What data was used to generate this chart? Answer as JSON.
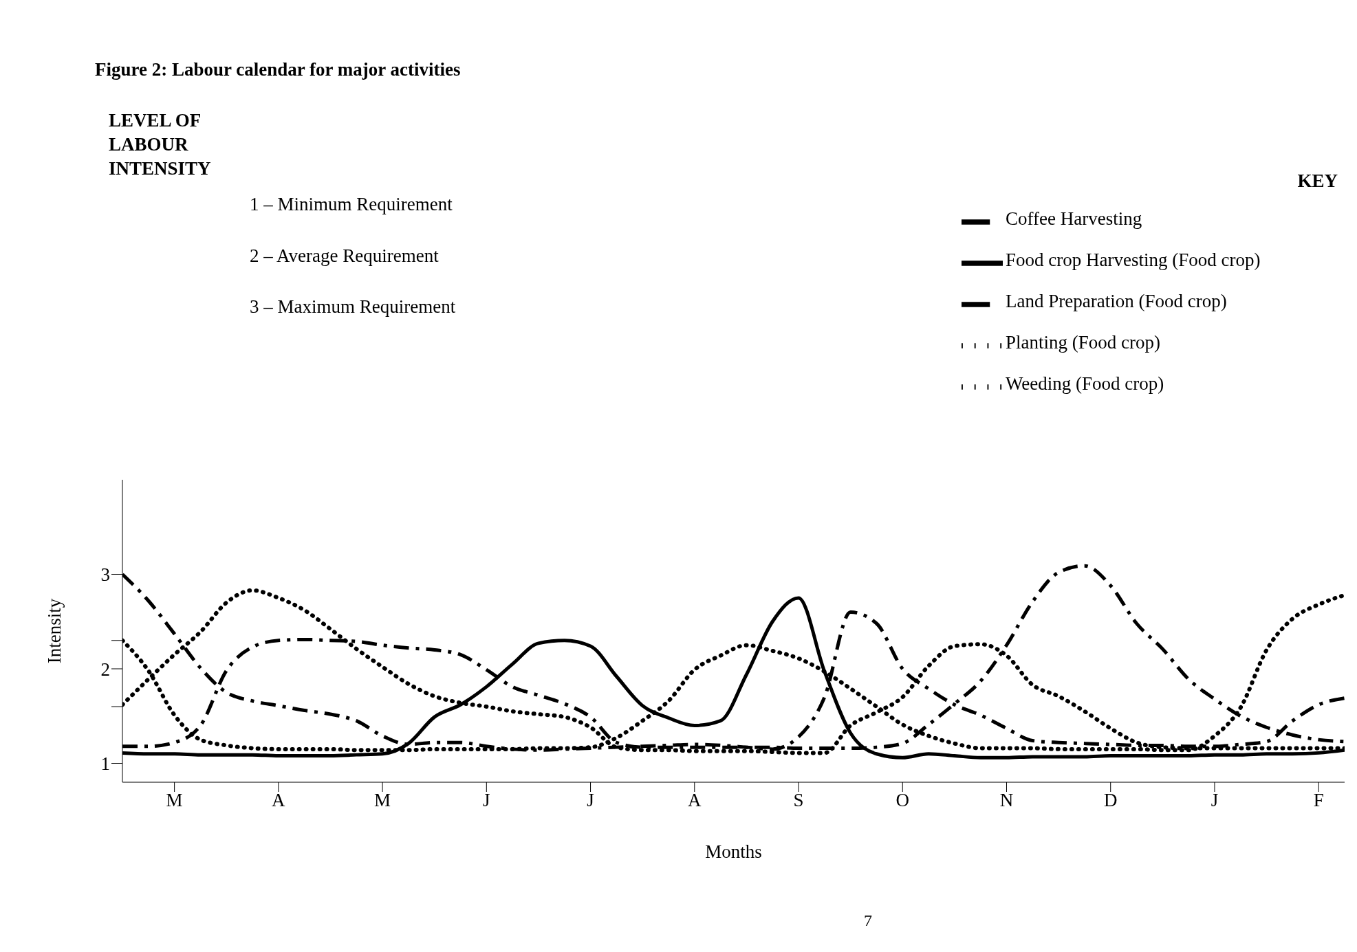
{
  "chart_data": {
    "type": "line",
    "title": "Figure 2: Labour calendar for major activities",
    "xlabel": "Months",
    "ylabel": "Intensity",
    "legend_title": "KEY",
    "legend": "top right",
    "annotations": [
      "LEVEL OF LABOUR INTENSITY",
      "1 – Minimum Requirement",
      "2 – Average Requirement",
      "3 – Maximum Requirement",
      "7"
    ],
    "categories": [
      null,
      null,
      "M",
      null,
      null,
      null,
      "A",
      null,
      null,
      null,
      "M",
      null,
      null,
      null,
      "J",
      null,
      null,
      null,
      "J",
      null,
      null,
      null,
      "A",
      null,
      null,
      null,
      "S",
      null,
      null,
      null,
      "O",
      null,
      null,
      null,
      "N",
      null,
      null,
      null,
      "D",
      null,
      null,
      null,
      "J",
      null,
      null,
      null,
      "F",
      null
    ],
    "ylim": [
      0.8,
      4
    ],
    "yticks": [
      1,
      {
        "value": 1.6,
        "label": null
      },
      2,
      {
        "value": 2.3,
        "label": null
      },
      3
    ],
    "series": [
      {
        "name": "Land Preparation (Food crop)",
        "color": "#000000",
        "line_style": "dashed",
        "values": [
          3.0,
          2.72,
          2.37,
          2.01,
          1.75,
          1.66,
          1.61,
          1.56,
          1.52,
          1.45,
          1.29,
          1.2,
          1.22,
          1.22,
          1.18,
          1.15,
          1.14,
          1.15,
          1.16,
          1.17,
          1.18,
          1.19,
          1.2,
          1.19,
          1.17,
          1.15,
          1.28,
          1.7,
          2.6,
          2.48,
          2.0,
          1.79,
          1.62,
          1.51,
          1.37,
          1.24,
          1.22,
          1.21,
          1.2,
          1.19,
          1.19,
          1.18,
          1.18,
          1.2,
          1.23,
          1.45,
          1.62,
          1.69
        ]
      },
      {
        "name": "Planting (Food crop)",
        "color": "#000000",
        "line_style": "dotted",
        "values": [
          2.3,
          1.98,
          1.51,
          1.25,
          1.19,
          1.16,
          1.15,
          1.15,
          1.15,
          1.14,
          1.14,
          1.14,
          1.15,
          1.15,
          1.15,
          1.15,
          1.16,
          1.16,
          1.17,
          1.27,
          1.45,
          1.66,
          1.99,
          2.14,
          2.25,
          2.19,
          2.11,
          1.97,
          1.79,
          1.6,
          1.41,
          1.29,
          1.21,
          1.16,
          1.16,
          1.16,
          1.15,
          1.15,
          1.15,
          1.15,
          1.14,
          1.14,
          1.29,
          1.59,
          2.2,
          2.53,
          2.68,
          2.78
        ]
      },
      {
        "name": "Weeding (Food crop)",
        "color": "#000000",
        "line_style": "dotted",
        "values": [
          1.62,
          1.89,
          2.15,
          2.39,
          2.7,
          2.83,
          2.75,
          2.62,
          2.42,
          2.21,
          2.02,
          1.84,
          1.71,
          1.64,
          1.6,
          1.55,
          1.52,
          1.49,
          1.38,
          1.17,
          1.14,
          1.14,
          1.13,
          1.13,
          1.13,
          1.12,
          1.11,
          1.11,
          1.4,
          1.54,
          1.7,
          2.03,
          2.24,
          2.26,
          2.14,
          1.83,
          1.71,
          1.55,
          1.37,
          1.22,
          1.17,
          1.16,
          1.16,
          1.16,
          1.16,
          1.16,
          1.16,
          1.16
        ]
      },
      {
        "name": "Food crop Harvesting (Food crop)",
        "color": "#000000",
        "line_style": "solid",
        "values": [
          1.11,
          1.1,
          1.1,
          1.09,
          1.09,
          1.09,
          1.08,
          1.08,
          1.08,
          1.09,
          1.1,
          1.21,
          1.49,
          1.62,
          1.81,
          2.05,
          2.27,
          2.3,
          2.24,
          1.92,
          1.61,
          1.48,
          1.4,
          1.45,
          1.94,
          2.5,
          2.75,
          1.97,
          1.32,
          1.1,
          1.06,
          1.1,
          1.08,
          1.06,
          1.06,
          1.07,
          1.07,
          1.07,
          1.08,
          1.08,
          1.08,
          1.08,
          1.09,
          1.09,
          1.1,
          1.1,
          1.11,
          1.14
        ]
      },
      {
        "name": "Coffee Harvesting",
        "color": "#000000",
        "line_style": "dashed",
        "values": [
          1.18,
          1.18,
          1.22,
          1.4,
          1.98,
          2.23,
          2.3,
          2.31,
          2.3,
          2.29,
          2.25,
          2.22,
          2.2,
          2.15,
          1.99,
          1.81,
          1.72,
          1.63,
          1.49,
          1.22,
          1.17,
          1.17,
          1.17,
          1.17,
          1.17,
          1.17,
          1.16,
          1.16,
          1.16,
          1.17,
          1.21,
          1.41,
          1.63,
          1.87,
          2.25,
          2.71,
          3.02,
          3.09,
          2.88,
          2.48,
          2.21,
          1.89,
          1.68,
          1.5,
          1.38,
          1.3,
          1.25,
          1.23
        ]
      }
    ]
  }
}
